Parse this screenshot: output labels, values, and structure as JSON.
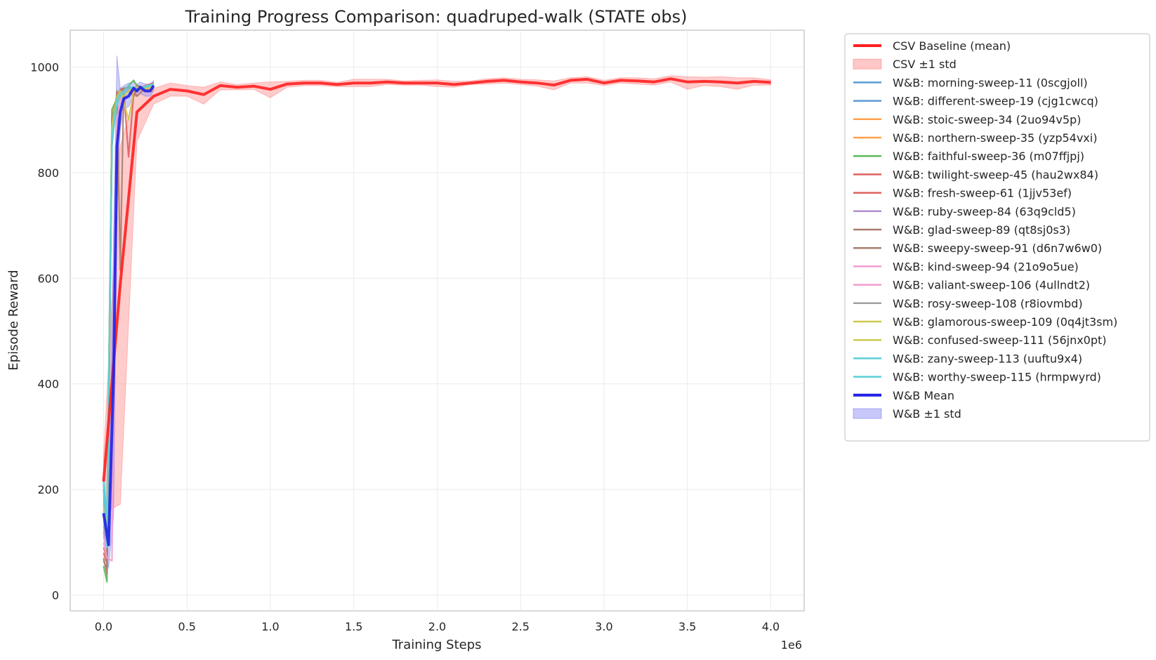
{
  "chart_data": {
    "type": "line",
    "title": "Training Progress Comparison: quadruped-walk (STATE obs)",
    "xlabel": "Training Steps",
    "ylabel": "Episode Reward",
    "x_multiplier": "1e6",
    "xlim": [
      -0.2,
      4.2
    ],
    "ylim": [
      -30,
      1070
    ],
    "x_ticks": [
      0.0,
      0.5,
      1.0,
      1.5,
      2.0,
      2.5,
      3.0,
      3.5,
      4.0
    ],
    "x_tick_labels": [
      "0.0",
      "0.5",
      "1.0",
      "1.5",
      "2.0",
      "2.5",
      "3.0",
      "3.5",
      "4.0"
    ],
    "y_ticks": [
      0,
      200,
      400,
      600,
      800,
      1000
    ],
    "y_tick_labels": [
      "0",
      "200",
      "400",
      "600",
      "800",
      "1000"
    ],
    "grid": true,
    "legend_position": "outside-right",
    "csv_baseline": {
      "name": "CSV Baseline (mean)",
      "band_name": "CSV ±1 std",
      "color": "#ff2020",
      "band_color": "#ff9999",
      "x": [
        0.0,
        0.1,
        0.2,
        0.3,
        0.4,
        0.5,
        0.6,
        0.7,
        0.8,
        0.9,
        1.0,
        1.1,
        1.2,
        1.3,
        1.4,
        1.5,
        1.6,
        1.7,
        1.8,
        1.9,
        2.0,
        2.1,
        2.2,
        2.3,
        2.4,
        2.5,
        2.6,
        2.7,
        2.8,
        2.9,
        3.0,
        3.1,
        3.2,
        3.3,
        3.4,
        3.5,
        3.6,
        3.7,
        3.8,
        3.9,
        4.0
      ],
      "y": [
        215,
        590,
        915,
        945,
        958,
        955,
        948,
        965,
        962,
        964,
        958,
        968,
        970,
        970,
        967,
        970,
        970,
        972,
        970,
        970,
        970,
        967,
        970,
        973,
        975,
        972,
        970,
        966,
        975,
        977,
        970,
        975,
        974,
        972,
        978,
        972,
        973,
        972,
        970,
        973,
        971
      ],
      "lower": [
        155,
        172,
        860,
        930,
        945,
        945,
        930,
        957,
        957,
        958,
        942,
        962,
        965,
        965,
        963,
        963,
        963,
        967,
        966,
        966,
        963,
        962,
        967,
        968,
        970,
        967,
        964,
        957,
        970,
        970,
        965,
        970,
        968,
        966,
        972,
        958,
        965,
        963,
        958,
        966,
        966
      ],
      "upper": [
        265,
        850,
        965,
        960,
        970,
        965,
        962,
        972,
        967,
        970,
        972,
        973,
        975,
        975,
        971,
        977,
        977,
        977,
        974,
        975,
        976,
        973,
        974,
        978,
        980,
        977,
        976,
        974,
        980,
        982,
        975,
        980,
        980,
        978,
        984,
        982,
        981,
        982,
        980,
        980,
        976
      ]
    },
    "wandb_runs": [
      {
        "name": "W&B: morning-sweep-11 (0scgjoll)",
        "color": "#5b9bd5",
        "x": [
          0.0,
          0.02,
          0.05,
          0.08,
          0.1,
          0.12,
          0.15,
          0.18,
          0.2,
          0.25,
          0.3
        ],
        "y": [
          210,
          120,
          880,
          930,
          945,
          950,
          955,
          960,
          958,
          955,
          962
        ]
      },
      {
        "name": "W&B: different-sweep-19 (cjg1cwcq)",
        "color": "#5b9bd5",
        "x": [
          0.0,
          0.02,
          0.05,
          0.08,
          0.1,
          0.12,
          0.15,
          0.18,
          0.2,
          0.25,
          0.3
        ],
        "y": [
          200,
          110,
          860,
          940,
          950,
          945,
          960,
          955,
          962,
          958,
          965
        ]
      },
      {
        "name": "W&B: stoic-sweep-34 (2uo94v5p)",
        "color": "#ffa04d",
        "x": [
          0.0,
          0.02,
          0.05,
          0.08,
          0.1,
          0.12,
          0.15,
          0.18,
          0.2,
          0.25,
          0.3
        ],
        "y": [
          160,
          140,
          900,
          935,
          940,
          950,
          955,
          950,
          958,
          960,
          955
        ]
      },
      {
        "name": "W&B: northern-sweep-35 (yzp54vxi)",
        "color": "#ffa04d",
        "x": [
          0.0,
          0.02,
          0.05,
          0.08,
          0.1,
          0.12,
          0.15,
          0.18,
          0.2,
          0.25,
          0.3
        ],
        "y": [
          170,
          130,
          910,
          945,
          950,
          955,
          958,
          962,
          955,
          960,
          963
        ]
      },
      {
        "name": "W&B: faithful-sweep-36 (m07ffjpj)",
        "color": "#5cb85c",
        "x": [
          0.0,
          0.02,
          0.03,
          0.05,
          0.08,
          0.1,
          0.12,
          0.15,
          0.18,
          0.2,
          0.25
        ],
        "y": [
          55,
          25,
          300,
          920,
          940,
          950,
          955,
          965,
          975,
          965,
          960
        ]
      },
      {
        "name": "W&B: twilight-sweep-45 (hau2wx84)",
        "color": "#e06060",
        "x": [
          0.0,
          0.02,
          0.05,
          0.08,
          0.1,
          0.12,
          0.15,
          0.18,
          0.2,
          0.25,
          0.3
        ],
        "y": [
          80,
          60,
          880,
          950,
          955,
          960,
          830,
          950,
          958,
          965,
          970
        ]
      },
      {
        "name": "W&B: fresh-sweep-61 (1jjv53ef)",
        "color": "#e06060",
        "x": [
          0.0,
          0.02,
          0.05,
          0.08,
          0.1,
          0.12,
          0.15,
          0.18,
          0.2,
          0.25,
          0.3
        ],
        "y": [
          90,
          70,
          870,
          935,
          950,
          958,
          955,
          945,
          960,
          958,
          968
        ]
      },
      {
        "name": "W&B: ruby-sweep-84 (63q9cld5)",
        "color": "#b28fcf",
        "x": [
          0.0,
          0.02,
          0.05,
          0.08,
          0.1,
          0.12,
          0.15,
          0.18,
          0.2,
          0.25,
          0.3
        ],
        "y": [
          120,
          100,
          860,
          940,
          950,
          955,
          960,
          958,
          962,
          960,
          965
        ]
      },
      {
        "name": "W&B: glad-sweep-89 (qt8sj0s3)",
        "color": "#a87d6e",
        "x": [
          0.0,
          0.02,
          0.05,
          0.08,
          0.1,
          0.12,
          0.15,
          0.18,
          0.2,
          0.25,
          0.3
        ],
        "y": [
          70,
          40,
          850,
          955,
          615,
          950,
          960,
          955,
          945,
          960,
          962
        ]
      },
      {
        "name": "W&B: sweepy-sweep-91 (d6n7w6w0)",
        "color": "#a87d6e",
        "x": [
          0.0,
          0.02,
          0.05,
          0.08,
          0.1,
          0.12,
          0.15,
          0.18,
          0.2,
          0.25,
          0.3
        ],
        "y": [
          65,
          50,
          900,
          940,
          958,
          960,
          962,
          958,
          965,
          960,
          966
        ]
      },
      {
        "name": "W&B: kind-sweep-94 (21o9o5ue)",
        "color": "#f09dd0",
        "x": [
          0.0,
          0.02,
          0.05,
          0.08,
          0.1,
          0.12,
          0.15,
          0.18,
          0.2,
          0.25,
          0.3
        ],
        "y": [
          100,
          70,
          65,
          900,
          940,
          955,
          958,
          960,
          962,
          958,
          964
        ]
      },
      {
        "name": "W&B: valiant-sweep-106 (4ullndt2)",
        "color": "#f09dd0",
        "x": [
          0.0,
          0.02,
          0.05,
          0.08,
          0.1,
          0.12,
          0.15,
          0.18,
          0.2,
          0.25,
          0.3
        ],
        "y": [
          110,
          90,
          880,
          930,
          945,
          950,
          955,
          958,
          960,
          962,
          965
        ]
      },
      {
        "name": "W&B: rosy-sweep-108 (r8iovmbd)",
        "color": "#a0a0a0",
        "x": [
          0.0,
          0.02,
          0.05,
          0.08,
          0.1,
          0.12,
          0.15,
          0.18,
          0.2,
          0.25,
          0.3
        ],
        "y": [
          130,
          110,
          870,
          935,
          948,
          952,
          958,
          960,
          958,
          962,
          964
        ]
      },
      {
        "name": "W&B: glamorous-sweep-109 (0q4jt3sm)",
        "color": "#cfc94f",
        "x": [
          0.0,
          0.02,
          0.05,
          0.08,
          0.1,
          0.12,
          0.15,
          0.18,
          0.2,
          0.25,
          0.3
        ],
        "y": [
          150,
          130,
          890,
          945,
          955,
          935,
          900,
          955,
          960,
          958,
          962
        ]
      },
      {
        "name": "W&B: confused-sweep-111 (56jnx0pt)",
        "color": "#cfc94f",
        "x": [
          0.0,
          0.02,
          0.05,
          0.08,
          0.1,
          0.12,
          0.15,
          0.18,
          0.2,
          0.25,
          0.3
        ],
        "y": [
          160,
          140,
          880,
          930,
          950,
          945,
          955,
          960,
          962,
          960,
          963
        ]
      },
      {
        "name": "W&B: zany-sweep-113 (uuftu9x4)",
        "color": "#5bcfd6",
        "x": [
          0.0,
          0.02,
          0.05,
          0.08,
          0.1,
          0.12,
          0.15,
          0.18,
          0.2,
          0.25,
          0.3
        ],
        "y": [
          220,
          150,
          870,
          940,
          950,
          955,
          965,
          960,
          958,
          962,
          966
        ]
      },
      {
        "name": "W&B: worthy-sweep-115 (hrmpwyrd)",
        "color": "#5bcfd6",
        "x": [
          0.0,
          0.02,
          0.05,
          0.08,
          0.1,
          0.12,
          0.15,
          0.18,
          0.2,
          0.25,
          0.3
        ],
        "y": [
          215,
          90,
          860,
          930,
          945,
          950,
          960,
          962,
          958,
          964,
          968
        ]
      }
    ],
    "wandb_mean": {
      "name": "W&B Mean",
      "band_name": "W&B ±1 std",
      "color": "#2020e6",
      "band_color": "#9a9af5",
      "x": [
        0.0,
        0.03,
        0.06,
        0.08,
        0.1,
        0.12,
        0.15,
        0.18,
        0.2,
        0.22,
        0.25,
        0.28,
        0.3
      ],
      "y": [
        155,
        95,
        420,
        850,
        915,
        940,
        945,
        960,
        955,
        962,
        955,
        955,
        965
      ],
      "lower": [
        110,
        50,
        150,
        740,
        880,
        920,
        925,
        945,
        945,
        950,
        945,
        945,
        955
      ],
      "upper": [
        210,
        135,
        700,
        1022,
        960,
        965,
        970,
        972,
        968,
        972,
        968,
        968,
        975
      ]
    }
  }
}
